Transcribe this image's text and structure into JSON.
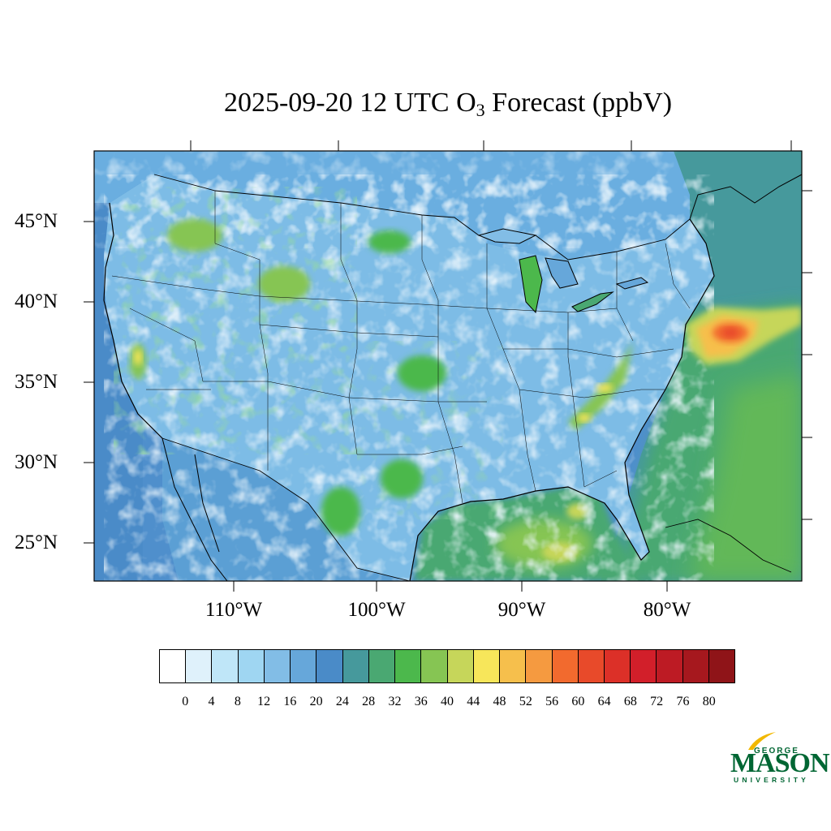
{
  "title": {
    "prefix": "2025-09-20 12 UTC O",
    "subscript": "3",
    "suffix": " Forecast (ppbV)"
  },
  "map": {
    "region": "Contiguous United States",
    "variable": "Surface O3 forecast",
    "units": "ppbV",
    "lat_labels": [
      "45°N",
      "40°N",
      "35°N",
      "30°N",
      "25°N"
    ],
    "lon_labels": [
      "110°W",
      "100°W",
      "90°W",
      "80°W"
    ],
    "hotspots": [
      {
        "location": "Atlantic off Mid-Atlantic coast",
        "level": "56-64"
      },
      {
        "location": "Gulf of Mexico",
        "level": "40-48"
      },
      {
        "location": "Southern Appalachians",
        "level": "44-48"
      },
      {
        "location": "Central California",
        "level": "44-48"
      }
    ]
  },
  "colorbar": {
    "colors": [
      "#ffffff",
      "#dff1fb",
      "#bfe6f8",
      "#9fd6f2",
      "#82bde6",
      "#66a7da",
      "#4a8bc8",
      "#46999c",
      "#4aa872",
      "#4cb84c",
      "#86c553",
      "#c6d65a",
      "#f7e65a",
      "#f6bf4c",
      "#f59a40",
      "#f26a2e",
      "#e84a2a",
      "#dc3028",
      "#d21f2a",
      "#bd1b24",
      "#a6181e",
      "#8f1418"
    ],
    "tick_labels": [
      "0",
      "4",
      "8",
      "12",
      "16",
      "20",
      "24",
      "28",
      "32",
      "36",
      "40",
      "44",
      "48",
      "52",
      "56",
      "60",
      "64",
      "68",
      "72",
      "76",
      "80"
    ]
  },
  "logo": {
    "line1": "GEORGE",
    "line2": "MASON",
    "line3": "UNIVERSITY",
    "color": "#006633"
  }
}
